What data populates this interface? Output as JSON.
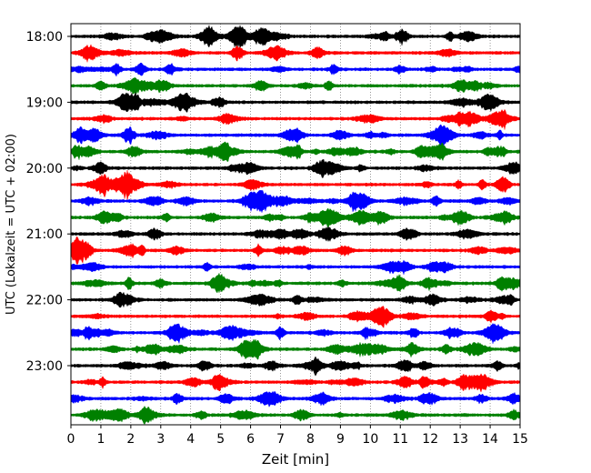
{
  "chart_data": {
    "type": "line",
    "title": "",
    "xlabel": "Zeit  [min]",
    "ylabel": "UTC (Lokalzeit = UTC + 02:00)",
    "xlim": [
      0,
      15
    ],
    "x_ticks": [
      "0",
      "1",
      "2",
      "3",
      "4",
      "5",
      "6",
      "7",
      "8",
      "9",
      "10",
      "11",
      "12",
      "13",
      "14",
      "15"
    ],
    "y_ticks": [
      "18:00",
      "19:00",
      "20:00",
      "21:00",
      "22:00",
      "23:00"
    ],
    "grid": "vertical dotted lines at each minute",
    "trace_interval_minutes": 15,
    "traces": [
      {
        "start": "18:00",
        "color": "#000000",
        "end_min": 15
      },
      {
        "start": "18:15",
        "color": "#ff0000",
        "end_min": 15
      },
      {
        "start": "18:30",
        "color": "#0000ff",
        "end_min": 15
      },
      {
        "start": "18:45",
        "color": "#008000",
        "end_min": 15
      },
      {
        "start": "19:00",
        "color": "#000000",
        "end_min": 15
      },
      {
        "start": "19:15",
        "color": "#ff0000",
        "end_min": 15
      },
      {
        "start": "19:30",
        "color": "#0000ff",
        "end_min": 15
      },
      {
        "start": "19:45",
        "color": "#008000",
        "end_min": 15
      },
      {
        "start": "20:00",
        "color": "#000000",
        "end_min": 15
      },
      {
        "start": "20:15",
        "color": "#ff0000",
        "end_min": 15
      },
      {
        "start": "20:30",
        "color": "#0000ff",
        "end_min": 15
      },
      {
        "start": "20:45",
        "color": "#008000",
        "end_min": 15
      },
      {
        "start": "21:00",
        "color": "#000000",
        "end_min": 15
      },
      {
        "start": "21:15",
        "color": "#ff0000",
        "end_min": 15
      },
      {
        "start": "21:30",
        "color": "#0000ff",
        "end_min": 15
      },
      {
        "start": "21:45",
        "color": "#008000",
        "end_min": 15
      },
      {
        "start": "22:00",
        "color": "#000000",
        "end_min": 15
      },
      {
        "start": "22:15",
        "color": "#ff0000",
        "end_min": 15
      },
      {
        "start": "22:30",
        "color": "#0000ff",
        "end_min": 15
      },
      {
        "start": "22:45",
        "color": "#008000",
        "end_min": 15
      },
      {
        "start": "23:00",
        "color": "#000000",
        "end_min": 15
      },
      {
        "start": "23:15",
        "color": "#ff0000",
        "end_min": 15
      },
      {
        "start": "23:30",
        "color": "#0000ff",
        "end_min": 15
      },
      {
        "start": "23:45",
        "color": "#008000",
        "end_min": 15
      }
    ]
  }
}
